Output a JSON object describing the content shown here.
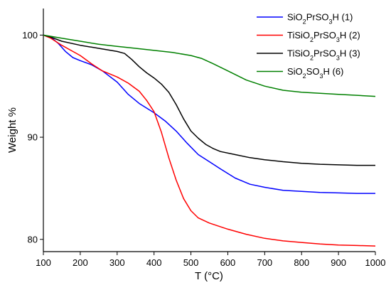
{
  "chart_data": {
    "type": "line",
    "xlabel": "T (°C)",
    "ylabel": "Weight %",
    "xlim": [
      100,
      1000
    ],
    "ylim": [
      78.8,
      102.6
    ],
    "x_ticks": [
      100,
      200,
      300,
      400,
      500,
      600,
      700,
      800,
      900,
      1000
    ],
    "y_ticks": [
      80,
      90,
      100
    ],
    "grid": false,
    "legend_position": "top-right",
    "series": [
      {
        "name": "SiO2PrSO3H (1)",
        "label_parts": [
          [
            "SiO",
            ""
          ],
          [
            "2",
            "sub"
          ],
          [
            "PrSO",
            ""
          ],
          [
            "3",
            "sub"
          ],
          [
            "H (1)",
            ""
          ]
        ],
        "color": "#0000ff",
        "points": [
          [
            100,
            100.0
          ],
          [
            120,
            99.8
          ],
          [
            140,
            99.2
          ],
          [
            160,
            98.4
          ],
          [
            180,
            97.8
          ],
          [
            200,
            97.5
          ],
          [
            230,
            97.1
          ],
          [
            260,
            96.5
          ],
          [
            300,
            95.4
          ],
          [
            330,
            94.2
          ],
          [
            360,
            93.3
          ],
          [
            400,
            92.4
          ],
          [
            430,
            91.6
          ],
          [
            460,
            90.6
          ],
          [
            490,
            89.4
          ],
          [
            520,
            88.3
          ],
          [
            550,
            87.6
          ],
          [
            580,
            86.9
          ],
          [
            620,
            86.0
          ],
          [
            660,
            85.4
          ],
          [
            700,
            85.1
          ],
          [
            750,
            84.8
          ],
          [
            800,
            84.7
          ],
          [
            850,
            84.6
          ],
          [
            900,
            84.55
          ],
          [
            950,
            84.5
          ],
          [
            1000,
            84.5
          ]
        ]
      },
      {
        "name": "TiSiO2PrSO3H (2)",
        "label_parts": [
          [
            "TiSiO",
            ""
          ],
          [
            "2",
            "sub"
          ],
          [
            "PrSO",
            ""
          ],
          [
            "3",
            "sub"
          ],
          [
            "H (2)",
            ""
          ]
        ],
        "color": "#ff0000",
        "points": [
          [
            100,
            100.0
          ],
          [
            120,
            99.7
          ],
          [
            150,
            99.0
          ],
          [
            180,
            98.4
          ],
          [
            200,
            98.0
          ],
          [
            230,
            97.2
          ],
          [
            260,
            96.5
          ],
          [
            300,
            95.9
          ],
          [
            330,
            95.3
          ],
          [
            360,
            94.5
          ],
          [
            380,
            93.6
          ],
          [
            400,
            92.5
          ],
          [
            420,
            90.5
          ],
          [
            440,
            88.0
          ],
          [
            460,
            85.8
          ],
          [
            480,
            84.0
          ],
          [
            500,
            82.8
          ],
          [
            520,
            82.1
          ],
          [
            550,
            81.6
          ],
          [
            600,
            81.0
          ],
          [
            650,
            80.5
          ],
          [
            700,
            80.1
          ],
          [
            750,
            79.85
          ],
          [
            800,
            79.7
          ],
          [
            850,
            79.55
          ],
          [
            900,
            79.45
          ],
          [
            950,
            79.4
          ],
          [
            1000,
            79.35
          ]
        ]
      },
      {
        "name": "TiSiO2PrSO3H (3)",
        "label_parts": [
          [
            "TiSiO",
            ""
          ],
          [
            "2",
            "sub"
          ],
          [
            "PrSO",
            ""
          ],
          [
            "3",
            "sub"
          ],
          [
            "H (3)",
            ""
          ]
        ],
        "color": "#000000",
        "points": [
          [
            100,
            100.0
          ],
          [
            120,
            99.8
          ],
          [
            150,
            99.4
          ],
          [
            200,
            99.0
          ],
          [
            250,
            98.7
          ],
          [
            300,
            98.4
          ],
          [
            320,
            98.2
          ],
          [
            340,
            97.6
          ],
          [
            360,
            96.9
          ],
          [
            380,
            96.3
          ],
          [
            400,
            95.8
          ],
          [
            420,
            95.2
          ],
          [
            440,
            94.4
          ],
          [
            460,
            93.2
          ],
          [
            480,
            91.8
          ],
          [
            500,
            90.6
          ],
          [
            520,
            89.9
          ],
          [
            540,
            89.3
          ],
          [
            560,
            88.9
          ],
          [
            580,
            88.6
          ],
          [
            620,
            88.3
          ],
          [
            660,
            88.0
          ],
          [
            700,
            87.8
          ],
          [
            750,
            87.6
          ],
          [
            800,
            87.45
          ],
          [
            850,
            87.35
          ],
          [
            900,
            87.3
          ],
          [
            950,
            87.25
          ],
          [
            1000,
            87.25
          ]
        ]
      },
      {
        "name": "SiO2SO3H (6)",
        "label_parts": [
          [
            "SiO",
            ""
          ],
          [
            "2",
            "sub"
          ],
          [
            "SO",
            ""
          ],
          [
            "3",
            "sub"
          ],
          [
            "H (6)",
            ""
          ]
        ],
        "color": "#008000",
        "points": [
          [
            100,
            100.0
          ],
          [
            150,
            99.7
          ],
          [
            200,
            99.4
          ],
          [
            250,
            99.1
          ],
          [
            300,
            98.9
          ],
          [
            350,
            98.7
          ],
          [
            400,
            98.5
          ],
          [
            450,
            98.3
          ],
          [
            500,
            98.0
          ],
          [
            530,
            97.7
          ],
          [
            560,
            97.2
          ],
          [
            600,
            96.5
          ],
          [
            650,
            95.6
          ],
          [
            700,
            95.0
          ],
          [
            750,
            94.6
          ],
          [
            800,
            94.4
          ],
          [
            850,
            94.3
          ],
          [
            900,
            94.2
          ],
          [
            950,
            94.1
          ],
          [
            1000,
            94.0
          ]
        ]
      }
    ]
  }
}
